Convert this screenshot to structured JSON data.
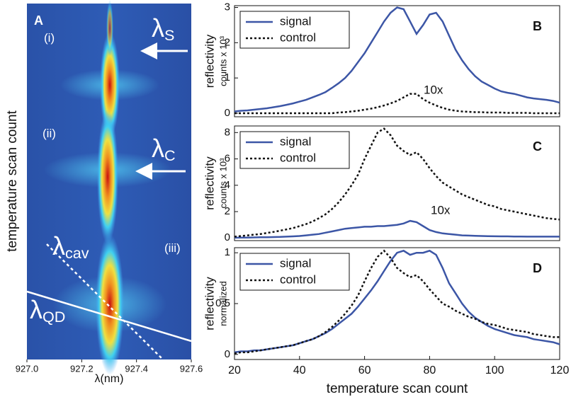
{
  "chart_data": [
    {
      "type": "image",
      "panel": "A",
      "xlabel": "λ(nm)",
      "ylabel": "temperature scan count",
      "xlim": [
        927.0,
        927.6
      ],
      "xticks": [
        {
          "value": 927.0,
          "label": "927.0"
        },
        927.2,
        927.4,
        927.6
      ],
      "annotations": [
        {
          "text": "(i)"
        },
        {
          "text": "(ii)"
        },
        {
          "text": "(iii)"
        },
        {
          "text": "λ",
          "sub": "S"
        },
        {
          "text": "λ",
          "sub": "C"
        },
        {
          "text": "λ",
          "sub": "cav"
        },
        {
          "text": "λ",
          "sub": "QD"
        }
      ]
    },
    {
      "type": "line",
      "panel": "B",
      "ylabel": "reflectivity",
      "ylabel2": "counts x 10³",
      "annotation": "10x",
      "xlim": [
        20,
        120
      ],
      "ylim": [
        -0.1,
        3.05
      ],
      "yticks": [
        0,
        1,
        2,
        3
      ],
      "legend": "upper left",
      "x": [
        20,
        22,
        24,
        26,
        28,
        30,
        32,
        34,
        36,
        38,
        40,
        42,
        44,
        46,
        48,
        50,
        52,
        54,
        56,
        58,
        60,
        62,
        64,
        66,
        68,
        70,
        72,
        74,
        76,
        78,
        80,
        82,
        84,
        86,
        88,
        90,
        92,
        94,
        96,
        98,
        100,
        102,
        104,
        106,
        108,
        110,
        112,
        114,
        116,
        118,
        120
      ],
      "series": [
        {
          "name": "signal",
          "color": "#3c56a6",
          "linestyle": "solid",
          "values": [
            0.05,
            0.07,
            0.08,
            0.1,
            0.12,
            0.14,
            0.17,
            0.2,
            0.24,
            0.28,
            0.33,
            0.38,
            0.45,
            0.52,
            0.6,
            0.72,
            0.85,
            1.0,
            1.2,
            1.45,
            1.7,
            2.0,
            2.3,
            2.6,
            2.85,
            3.0,
            2.95,
            2.6,
            2.25,
            2.5,
            2.8,
            2.85,
            2.6,
            2.2,
            1.8,
            1.5,
            1.25,
            1.05,
            0.9,
            0.8,
            0.7,
            0.62,
            0.58,
            0.55,
            0.5,
            0.45,
            0.42,
            0.4,
            0.38,
            0.35,
            0.3
          ]
        },
        {
          "name": "control",
          "color": "#111111",
          "linestyle": "dotted",
          "values": [
            0,
            0,
            0,
            0,
            0,
            0,
            0,
            0,
            0,
            0,
            0,
            0,
            0,
            0,
            0,
            0,
            0.02,
            0.03,
            0.05,
            0.07,
            0.1,
            0.13,
            0.17,
            0.22,
            0.28,
            0.35,
            0.45,
            0.55,
            0.55,
            0.4,
            0.3,
            0.22,
            0.15,
            0.1,
            0.07,
            0.05,
            0.04,
            0.03,
            0.03,
            0.02,
            0.02,
            0.02,
            0.01,
            0.01,
            0.01,
            0.01,
            0,
            0,
            0,
            0,
            0
          ]
        }
      ]
    },
    {
      "type": "line",
      "panel": "C",
      "ylabel": "reflectivity",
      "ylabel2": "counts x 10³",
      "annotation": "10x",
      "xlim": [
        20,
        120
      ],
      "ylim": [
        -0.2,
        8.5
      ],
      "yticks": [
        0,
        2,
        4,
        6,
        8
      ],
      "legend": "upper left",
      "x": [
        20,
        22,
        24,
        26,
        28,
        30,
        32,
        34,
        36,
        38,
        40,
        42,
        44,
        46,
        48,
        50,
        52,
        54,
        56,
        58,
        60,
        62,
        64,
        66,
        68,
        70,
        72,
        74,
        76,
        78,
        80,
        82,
        84,
        86,
        88,
        90,
        92,
        94,
        96,
        98,
        100,
        102,
        104,
        106,
        108,
        110,
        112,
        114,
        116,
        118,
        120
      ],
      "series": [
        {
          "name": "signal",
          "color": "#3c56a6",
          "linestyle": "solid",
          "values": [
            0.02,
            0.03,
            0.03,
            0.04,
            0.05,
            0.06,
            0.07,
            0.08,
            0.1,
            0.12,
            0.15,
            0.2,
            0.25,
            0.3,
            0.4,
            0.5,
            0.6,
            0.7,
            0.75,
            0.8,
            0.85,
            0.85,
            0.9,
            0.9,
            0.95,
            1.0,
            1.1,
            1.3,
            1.2,
            0.9,
            0.6,
            0.45,
            0.35,
            0.3,
            0.25,
            0.2,
            0.18,
            0.16,
            0.15,
            0.14,
            0.13,
            0.12,
            0.12,
            0.11,
            0.11,
            0.1,
            0.1,
            0.1,
            0.1,
            0.1,
            0.1
          ]
        },
        {
          "name": "control",
          "color": "#111111",
          "linestyle": "dotted",
          "values": [
            0.1,
            0.15,
            0.2,
            0.25,
            0.3,
            0.38,
            0.46,
            0.55,
            0.65,
            0.75,
            0.9,
            1.05,
            1.25,
            1.5,
            1.8,
            2.2,
            2.7,
            3.3,
            4.0,
            4.8,
            6.0,
            7.0,
            8.0,
            8.3,
            7.8,
            7.0,
            6.6,
            6.3,
            6.5,
            6.0,
            5.3,
            4.7,
            4.2,
            3.9,
            3.6,
            3.3,
            3.1,
            2.9,
            2.7,
            2.5,
            2.4,
            2.2,
            2.1,
            2.0,
            1.9,
            1.8,
            1.7,
            1.6,
            1.5,
            1.45,
            1.4
          ]
        }
      ]
    },
    {
      "type": "line",
      "panel": "D",
      "ylabel": "reflectivity",
      "ylabel2": "normalized",
      "xlabel": "temperature scan count",
      "xlim": [
        20,
        120
      ],
      "xticks": [
        20,
        40,
        60,
        80,
        100,
        120
      ],
      "ylim": [
        -0.05,
        1.05
      ],
      "yticks": [
        0,
        0.5,
        1
      ],
      "legend": "upper left",
      "x": [
        20,
        22,
        24,
        26,
        28,
        30,
        32,
        34,
        36,
        38,
        40,
        42,
        44,
        46,
        48,
        50,
        52,
        54,
        56,
        58,
        60,
        62,
        64,
        66,
        68,
        70,
        72,
        74,
        76,
        78,
        80,
        82,
        84,
        86,
        88,
        90,
        92,
        94,
        96,
        98,
        100,
        102,
        104,
        106,
        108,
        110,
        112,
        114,
        116,
        118,
        120
      ],
      "series": [
        {
          "name": "signal",
          "color": "#3c56a6",
          "linestyle": "solid",
          "values": [
            0.02,
            0.03,
            0.03,
            0.04,
            0.04,
            0.05,
            0.06,
            0.07,
            0.08,
            0.09,
            0.11,
            0.13,
            0.15,
            0.18,
            0.21,
            0.25,
            0.3,
            0.35,
            0.4,
            0.47,
            0.55,
            0.63,
            0.72,
            0.82,
            0.92,
            1.0,
            1.02,
            0.98,
            1.0,
            1.0,
            1.02,
            0.98,
            0.85,
            0.7,
            0.6,
            0.5,
            0.42,
            0.36,
            0.32,
            0.28,
            0.25,
            0.23,
            0.21,
            0.19,
            0.18,
            0.17,
            0.15,
            0.14,
            0.13,
            0.12,
            0.1
          ]
        },
        {
          "name": "control",
          "color": "#111111",
          "linestyle": "dotted",
          "values": [
            0.01,
            0.02,
            0.02,
            0.03,
            0.04,
            0.05,
            0.06,
            0.07,
            0.08,
            0.09,
            0.11,
            0.13,
            0.15,
            0.18,
            0.22,
            0.27,
            0.33,
            0.4,
            0.48,
            0.58,
            0.72,
            0.85,
            0.96,
            1.02,
            0.95,
            0.85,
            0.8,
            0.76,
            0.78,
            0.72,
            0.64,
            0.57,
            0.5,
            0.47,
            0.43,
            0.4,
            0.37,
            0.35,
            0.32,
            0.3,
            0.29,
            0.27,
            0.25,
            0.24,
            0.23,
            0.22,
            0.2,
            0.19,
            0.18,
            0.17,
            0.17
          ]
        }
      ]
    }
  ]
}
